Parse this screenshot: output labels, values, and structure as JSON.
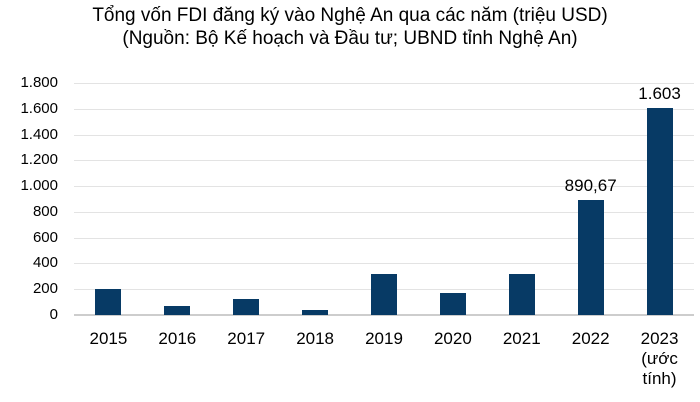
{
  "title": "Tổng vốn FDI đăng ký vào Nghệ An qua các năm (triệu USD)",
  "subtitle": "(Nguồn: Bộ Kế hoạch và Đầu tư; UBND tỉnh Nghệ An)",
  "colors": {
    "bar": "#073a65",
    "gridline": "#e3e3e3",
    "axis_line": "#cdcdcd",
    "text": "#000000"
  },
  "chart_data": {
    "type": "bar",
    "title": "Tổng vốn FDI đăng ký vào Nghệ An qua các năm (triệu USD)",
    "subtitle": "(Nguồn: Bộ Kế hoạch và Đầu tư; UBND tỉnh Nghệ An)",
    "xlabel": "",
    "ylabel": "",
    "unit": "triệu USD",
    "categories": [
      "2015",
      "2016",
      "2017",
      "2018",
      "2019",
      "2020",
      "2021",
      "2022",
      "2023"
    ],
    "category_notes": [
      "",
      "",
      "",
      "",
      "",
      "",
      "",
      "",
      "(ước tính)"
    ],
    "values": [
      205,
      72,
      127,
      35,
      318,
      168,
      318,
      890.67,
      1603
    ],
    "value_labels": [
      "",
      "",
      "",
      "",
      "",
      "",
      "",
      "890,67",
      "1.603"
    ],
    "ylim": [
      0,
      1800
    ],
    "y_ticks": [
      {
        "value": 0,
        "label": "0"
      },
      {
        "value": 200,
        "label": "200"
      },
      {
        "value": 400,
        "label": "400"
      },
      {
        "value": 600,
        "label": "600"
      },
      {
        "value": 800,
        "label": "800"
      },
      {
        "value": 1000,
        "label": "1.000"
      },
      {
        "value": 1200,
        "label": "1.200"
      },
      {
        "value": 1400,
        "label": "1.400"
      },
      {
        "value": 1600,
        "label": "1.600"
      },
      {
        "value": 1800,
        "label": "1.800"
      }
    ],
    "grid": true,
    "legend": false
  }
}
